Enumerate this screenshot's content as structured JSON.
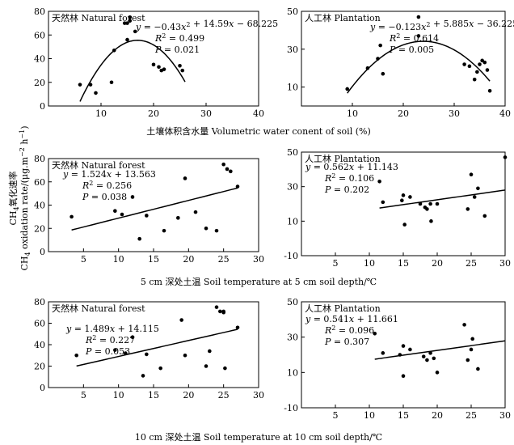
{
  "figure": {
    "xlabel_row1": "土壤体积含水量  Volumetric water conent of soil (%)",
    "xlabel_row2": "5 cm  深处土温  Soil temperature at 5 cm soil depth/℃",
    "xlabel_row3": "10 cm  深处土温  Soil temperature at 10 cm soil depth/℃",
    "ylabel_line1": "CH",
    "ylabel_line1_sub": "4",
    "ylabel_line1_rest": "氧化速率",
    "ylabel_line2": "CH",
    "ylabel_line2_sub": "4",
    "ylabel_line2_rest": " oxidation rate/(μg.m",
    "ylabel_line2_sup": "−2",
    "ylabel_line2_end": " h",
    "ylabel_line2_sup2": "−1",
    "ylabel_line2_close": ")"
  },
  "chart_data": [
    {
      "id": "p1",
      "type": "scatter",
      "fit": "quadratic",
      "title": "天然林  Natural forest",
      "xlim": [
        0,
        40
      ],
      "ylim": [
        0,
        80
      ],
      "xticks": [
        10,
        20,
        30,
        40
      ],
      "yticks": [
        0,
        20,
        40,
        60,
        80
      ],
      "points": [
        [
          6,
          18
        ],
        [
          8,
          18
        ],
        [
          9,
          11
        ],
        [
          12,
          20
        ],
        [
          12.5,
          47
        ],
        [
          14.5,
          70
        ],
        [
          15,
          70
        ],
        [
          15,
          56
        ],
        [
          15.5,
          75
        ],
        [
          15.5,
          72
        ],
        [
          16.5,
          63
        ],
        [
          20,
          35
        ],
        [
          21,
          33
        ],
        [
          21.5,
          30
        ],
        [
          22,
          31
        ],
        [
          25,
          34
        ],
        [
          25.5,
          30
        ]
      ],
      "coef": [
        -0.43,
        14.59,
        -68.225
      ],
      "fit_range": [
        6,
        26
      ],
      "eq_text": [
        "y",
        " = −0.43",
        "x",
        "2",
        " + 14.59",
        "x",
        " − 68.225"
      ],
      "r2": "0.499",
      "p": "0.021"
    },
    {
      "id": "p2",
      "type": "scatter",
      "fit": "quadratic",
      "title": "人工林  Plantation",
      "xlim": [
        0,
        40
      ],
      "ylim": [
        0,
        50
      ],
      "xticks": [
        10,
        20,
        30,
        40
      ],
      "yticks": [
        10,
        30,
        50
      ],
      "points": [
        [
          9,
          9
        ],
        [
          13,
          20
        ],
        [
          15,
          25
        ],
        [
          15.5,
          32
        ],
        [
          16,
          17
        ],
        [
          23,
          47
        ],
        [
          23,
          37
        ],
        [
          32,
          22
        ],
        [
          33,
          21
        ],
        [
          34,
          14
        ],
        [
          34.5,
          18
        ],
        [
          35,
          22
        ],
        [
          35.5,
          24
        ],
        [
          36,
          23
        ],
        [
          36.5,
          19
        ],
        [
          37,
          8
        ]
      ],
      "coef": [
        -0.123,
        5.885,
        -36.225
      ],
      "fit_range": [
        9,
        37
      ],
      "eq_text": [
        "y",
        " = −0.123",
        "x",
        "2",
        " + 5.885",
        "x",
        " − 36.225"
      ],
      "r2": "0.614",
      "p": "0.005"
    },
    {
      "id": "p3",
      "type": "scatter",
      "fit": "linear",
      "title": "天然林  Natural forest",
      "xlim": [
        0,
        30
      ],
      "ylim": [
        0,
        80
      ],
      "xticks": [
        5,
        10,
        15,
        20,
        25,
        30
      ],
      "yticks": [
        0,
        20,
        40,
        60,
        80
      ],
      "points": [
        [
          3.3,
          30
        ],
        [
          9.5,
          35
        ],
        [
          10.5,
          32
        ],
        [
          12,
          47
        ],
        [
          13,
          11
        ],
        [
          14,
          31
        ],
        [
          16.5,
          18
        ],
        [
          18.5,
          29
        ],
        [
          19.5,
          63
        ],
        [
          21,
          34
        ],
        [
          22.5,
          20
        ],
        [
          24,
          18
        ],
        [
          25,
          75
        ],
        [
          25.5,
          71
        ],
        [
          26,
          69
        ],
        [
          27,
          56
        ]
      ],
      "coef": [
        1.524,
        13.563
      ],
      "fit_range": [
        3.3,
        27
      ],
      "eq_text": [
        "y",
        " = 1.524",
        "x",
        "",
        " + 13.563",
        "",
        ""
      ],
      "r2": "0.256",
      "p": "0.038"
    },
    {
      "id": "p4",
      "type": "scatter",
      "fit": "linear",
      "title": "人工林  Plantation",
      "xlim": [
        0,
        30
      ],
      "ylim": [
        -10,
        50
      ],
      "xticks": [
        5,
        10,
        15,
        20,
        25,
        30
      ],
      "yticks": [
        -10,
        10,
        30,
        50
      ],
      "points": [
        [
          11.5,
          33
        ],
        [
          12,
          21
        ],
        [
          14.8,
          22
        ],
        [
          15,
          25
        ],
        [
          15.2,
          8
        ],
        [
          16,
          24
        ],
        [
          17.5,
          20
        ],
        [
          18.2,
          18
        ],
        [
          18.5,
          17
        ],
        [
          19,
          20
        ],
        [
          19.1,
          10
        ],
        [
          20,
          20
        ],
        [
          25,
          37
        ],
        [
          24.5,
          17
        ],
        [
          25.5,
          24
        ],
        [
          26,
          29
        ],
        [
          27,
          13
        ],
        [
          30,
          47
        ]
      ],
      "coef": [
        0.562,
        11.143
      ],
      "fit_range": [
        11.5,
        30
      ],
      "eq_text": [
        "y",
        " = 0.562",
        "x",
        "",
        " + 11.143",
        "",
        ""
      ],
      "r2": "0.106",
      "p": "0.202"
    },
    {
      "id": "p5",
      "type": "scatter",
      "fit": "linear",
      "title": "天然林  Natural forest",
      "xlim": [
        0,
        30
      ],
      "ylim": [
        0,
        80
      ],
      "xticks": [
        5,
        10,
        15,
        20,
        25,
        30
      ],
      "yticks": [
        0,
        20,
        40,
        60,
        80
      ],
      "points": [
        [
          4,
          30
        ],
        [
          9.5,
          35
        ],
        [
          11,
          32
        ],
        [
          12,
          47
        ],
        [
          13.5,
          11
        ],
        [
          14,
          31
        ],
        [
          16,
          18
        ],
        [
          19,
          63
        ],
        [
          19.5,
          30
        ],
        [
          22.5,
          20
        ],
        [
          23,
          34
        ],
        [
          24,
          75
        ],
        [
          24.5,
          71
        ],
        [
          25,
          71
        ],
        [
          25,
          70
        ],
        [
          25.2,
          18
        ],
        [
          27,
          56
        ]
      ],
      "coef": [
        1.489,
        14.115
      ],
      "fit_range": [
        4,
        27
      ],
      "eq_text": [
        "y",
        " = 1.489",
        "x",
        "",
        " + 14.115",
        "",
        ""
      ],
      "r2": "0.227",
      "p": "0.053"
    },
    {
      "id": "p6",
      "type": "scatter",
      "fit": "linear",
      "title": "人工林  Plantation",
      "xlim": [
        0,
        30
      ],
      "ylim": [
        -10,
        50
      ],
      "xticks": [
        5,
        10,
        15,
        20,
        25,
        30
      ],
      "yticks": [
        -10,
        10,
        30,
        50
      ],
      "points": [
        [
          10.8,
          32
        ],
        [
          12,
          21
        ],
        [
          14.5,
          20
        ],
        [
          15,
          25
        ],
        [
          15,
          8
        ],
        [
          16,
          23
        ],
        [
          18,
          19
        ],
        [
          18.5,
          17
        ],
        [
          19,
          21
        ],
        [
          19.5,
          18
        ],
        [
          20,
          10
        ],
        [
          24,
          37
        ],
        [
          24.5,
          17
        ],
        [
          25,
          23
        ],
        [
          25.2,
          29
        ],
        [
          26,
          12
        ]
      ],
      "coef": [
        0.541,
        11.661
      ],
      "fit_range": [
        10.8,
        30
      ],
      "eq_text": [
        "y",
        " = 0.541",
        "x",
        "",
        " + 11.661",
        "",
        ""
      ],
      "r2": "0.096",
      "p": "0.307"
    }
  ]
}
